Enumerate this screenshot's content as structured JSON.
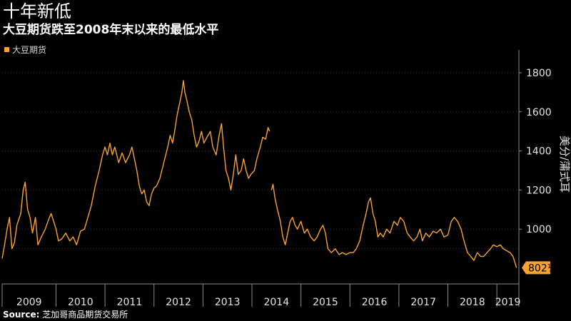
{
  "title": "十年新低",
  "subtitle": "大豆期货跌至2008年末以来的最低水平",
  "source_label": "Source:",
  "source_text": "芝加哥商品期货交易所",
  "colors": {
    "series": "#f7a234",
    "background": "#000000",
    "grid": "#3a3a3a",
    "axis": "#8c8c8c"
  },
  "chart_data": {
    "type": "line",
    "title": "十年新低",
    "subtitle": "大豆期货跌至2008年末以来的最低水平",
    "ylabel": "美分/蒲式耳",
    "xlabel": "",
    "ylim": [
      720,
      1880
    ],
    "yticks": [
      1000,
      1200,
      1400,
      1600,
      1800
    ],
    "xlim": [
      2008.9,
      2019.45
    ],
    "xticks": [
      2008.9,
      2010.0,
      2011.0,
      2012.0,
      2013.0,
      2014.0,
      2015.0,
      2016.0,
      2017.0,
      2018.0,
      2019.0
    ],
    "xtick_labels": [
      "2009",
      "2010",
      "2011",
      "2012",
      "2013",
      "2014",
      "2015",
      "2016",
      "2017",
      "2018",
      "2019"
    ],
    "grid": "horizontal dotted",
    "legend_position": "top-left",
    "last_value_label": "802½",
    "series": [
      {
        "name": "大豆期货",
        "points": [
          [
            2008.9,
            850
          ],
          [
            2008.95,
            920
          ],
          [
            2009.0,
            1000
          ],
          [
            2009.05,
            1060
          ],
          [
            2009.1,
            900
          ],
          [
            2009.15,
            930
          ],
          [
            2009.2,
            1020
          ],
          [
            2009.28,
            1080
          ],
          [
            2009.33,
            1200
          ],
          [
            2009.37,
            1240
          ],
          [
            2009.42,
            1100
          ],
          [
            2009.47,
            1060
          ],
          [
            2009.52,
            980
          ],
          [
            2009.58,
            1060
          ],
          [
            2009.63,
            920
          ],
          [
            2009.7,
            960
          ],
          [
            2009.78,
            1000
          ],
          [
            2009.85,
            1050
          ],
          [
            2009.9,
            1080
          ],
          [
            2009.95,
            1040
          ],
          [
            2010.0,
            1000
          ],
          [
            2010.05,
            940
          ],
          [
            2010.12,
            950
          ],
          [
            2010.2,
            980
          ],
          [
            2010.28,
            940
          ],
          [
            2010.35,
            960
          ],
          [
            2010.42,
            920
          ],
          [
            2010.5,
            990
          ],
          [
            2010.58,
            1000
          ],
          [
            2010.65,
            1060
          ],
          [
            2010.72,
            1120
          ],
          [
            2010.8,
            1220
          ],
          [
            2010.88,
            1300
          ],
          [
            2010.95,
            1380
          ],
          [
            2011.0,
            1420
          ],
          [
            2011.05,
            1380
          ],
          [
            2011.1,
            1440
          ],
          [
            2011.15,
            1380
          ],
          [
            2011.2,
            1420
          ],
          [
            2011.28,
            1340
          ],
          [
            2011.35,
            1390
          ],
          [
            2011.42,
            1340
          ],
          [
            2011.5,
            1380
          ],
          [
            2011.55,
            1420
          ],
          [
            2011.6,
            1360
          ],
          [
            2011.65,
            1300
          ],
          [
            2011.7,
            1220
          ],
          [
            2011.75,
            1180
          ],
          [
            2011.8,
            1200
          ],
          [
            2011.85,
            1140
          ],
          [
            2011.9,
            1120
          ],
          [
            2011.95,
            1180
          ],
          [
            2012.0,
            1210
          ],
          [
            2012.05,
            1220
          ],
          [
            2012.12,
            1260
          ],
          [
            2012.2,
            1340
          ],
          [
            2012.28,
            1420
          ],
          [
            2012.33,
            1480
          ],
          [
            2012.38,
            1440
          ],
          [
            2012.42,
            1500
          ],
          [
            2012.47,
            1580
          ],
          [
            2012.52,
            1640
          ],
          [
            2012.57,
            1700
          ],
          [
            2012.6,
            1760
          ],
          [
            2012.63,
            1700
          ],
          [
            2012.67,
            1660
          ],
          [
            2012.72,
            1600
          ],
          [
            2012.77,
            1560
          ],
          [
            2012.82,
            1480
          ],
          [
            2012.87,
            1420
          ],
          [
            2012.92,
            1450
          ],
          [
            2012.97,
            1500
          ],
          [
            2013.02,
            1440
          ],
          [
            2013.08,
            1470
          ],
          [
            2013.15,
            1500
          ],
          [
            2013.2,
            1420
          ],
          [
            2013.27,
            1380
          ],
          [
            2013.33,
            1480
          ],
          [
            2013.38,
            1540
          ],
          [
            2013.42,
            1420
          ],
          [
            2013.47,
            1300
          ],
          [
            2013.52,
            1260
          ],
          [
            2013.57,
            1200
          ],
          [
            2013.62,
            1280
          ],
          [
            2013.67,
            1380
          ],
          [
            2013.72,
            1280
          ],
          [
            2013.78,
            1300
          ],
          [
            2013.83,
            1360
          ],
          [
            2013.88,
            1300
          ],
          [
            2013.93,
            1260
          ],
          [
            2013.98,
            1280
          ],
          [
            2014.05,
            1300
          ],
          [
            2014.1,
            1360
          ],
          [
            2014.17,
            1420
          ],
          [
            2014.22,
            1470
          ],
          [
            2014.28,
            1460
          ],
          [
            2014.33,
            1520
          ],
          [
            2014.36,
            1500
          ],
          [
            2014.4,
            1200
          ],
          [
            2014.43,
            1230
          ],
          [
            2014.47,
            1160
          ],
          [
            2014.52,
            1100
          ],
          [
            2014.58,
            1040
          ],
          [
            2014.63,
            960
          ],
          [
            2014.68,
            920
          ],
          [
            2014.73,
            980
          ],
          [
            2014.78,
            1040
          ],
          [
            2014.83,
            1060
          ],
          [
            2014.88,
            1020
          ],
          [
            2014.93,
            1000
          ],
          [
            2015.0,
            1040
          ],
          [
            2015.07,
            980
          ],
          [
            2015.13,
            1000
          ],
          [
            2015.2,
            960
          ],
          [
            2015.27,
            940
          ],
          [
            2015.33,
            960
          ],
          [
            2015.4,
            1000
          ],
          [
            2015.45,
            1020
          ],
          [
            2015.5,
            980
          ],
          [
            2015.55,
            900
          ],
          [
            2015.62,
            880
          ],
          [
            2015.7,
            900
          ],
          [
            2015.78,
            870
          ],
          [
            2015.85,
            880
          ],
          [
            2015.92,
            870
          ],
          [
            2016.0,
            880
          ],
          [
            2016.07,
            880
          ],
          [
            2016.13,
            900
          ],
          [
            2016.2,
            940
          ],
          [
            2016.27,
            1020
          ],
          [
            2016.33,
            1080
          ],
          [
            2016.38,
            1140
          ],
          [
            2016.42,
            1160
          ],
          [
            2016.47,
            1080
          ],
          [
            2016.52,
            1040
          ],
          [
            2016.57,
            960
          ],
          [
            2016.62,
            980
          ],
          [
            2016.68,
            960
          ],
          [
            2016.75,
            1000
          ],
          [
            2016.82,
            980
          ],
          [
            2016.9,
            1040
          ],
          [
            2016.97,
            1020
          ],
          [
            2017.03,
            1060
          ],
          [
            2017.1,
            1040
          ],
          [
            2017.17,
            980
          ],
          [
            2017.23,
            960
          ],
          [
            2017.3,
            940
          ],
          [
            2017.37,
            960
          ],
          [
            2017.43,
            1000
          ],
          [
            2017.48,
            940
          ],
          [
            2017.55,
            980
          ],
          [
            2017.62,
            960
          ],
          [
            2017.7,
            990
          ],
          [
            2017.77,
            980
          ],
          [
            2017.85,
            1000
          ],
          [
            2017.92,
            960
          ],
          [
            2018.0,
            970
          ],
          [
            2018.07,
            1040
          ],
          [
            2018.13,
            1060
          ],
          [
            2018.2,
            1040
          ],
          [
            2018.27,
            1000
          ],
          [
            2018.33,
            940
          ],
          [
            2018.4,
            880
          ],
          [
            2018.47,
            860
          ],
          [
            2018.53,
            840
          ],
          [
            2018.6,
            880
          ],
          [
            2018.67,
            860
          ],
          [
            2018.73,
            860
          ],
          [
            2018.8,
            880
          ],
          [
            2018.87,
            900
          ],
          [
            2018.93,
            920
          ],
          [
            2019.0,
            910
          ],
          [
            2019.07,
            920
          ],
          [
            2019.13,
            900
          ],
          [
            2019.2,
            890
          ],
          [
            2019.27,
            880
          ],
          [
            2019.33,
            860
          ],
          [
            2019.38,
            820
          ],
          [
            2019.4,
            802.5
          ]
        ]
      }
    ]
  }
}
